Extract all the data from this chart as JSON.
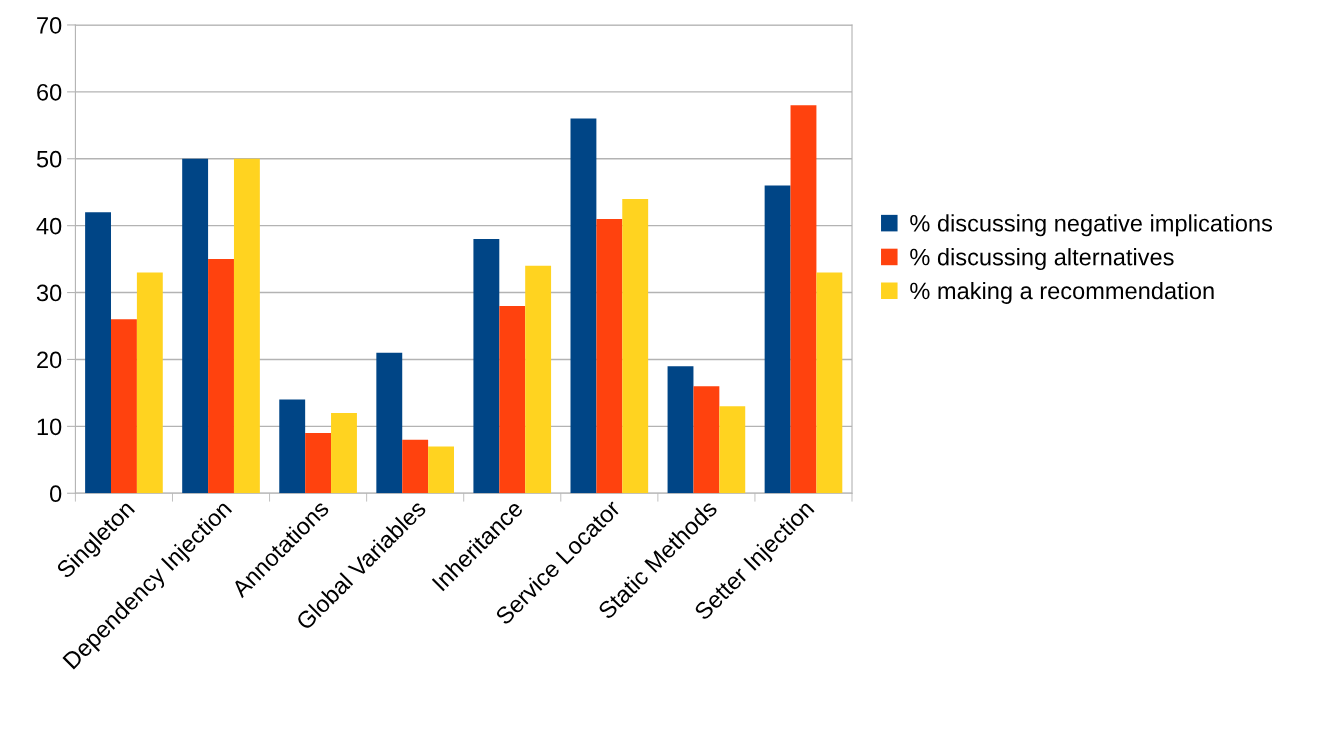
{
  "chart_data": {
    "type": "bar",
    "categories": [
      "Singleton",
      "Dependency Injection",
      "Annotations",
      "Global Variables",
      "Inheritance",
      "Service Locator",
      "Static Methods",
      "Setter Injection"
    ],
    "series": [
      {
        "name": "% discussing negative implications",
        "color": "#004586",
        "values": [
          42,
          50,
          14,
          21,
          38,
          56,
          19,
          46
        ]
      },
      {
        "name": "% discussing alternatives",
        "color": "#ff420e",
        "values": [
          26,
          35,
          9,
          8,
          28,
          41,
          16,
          58
        ]
      },
      {
        "name": "% making a recommendation",
        "color": "#ffd320",
        "values": [
          33,
          50,
          12,
          7,
          34,
          44,
          13,
          33
        ]
      }
    ],
    "ylim": [
      0,
      70
    ],
    "yticks": [
      0,
      10,
      20,
      30,
      40,
      50,
      60,
      70
    ],
    "grid": "y",
    "legend": "right"
  }
}
